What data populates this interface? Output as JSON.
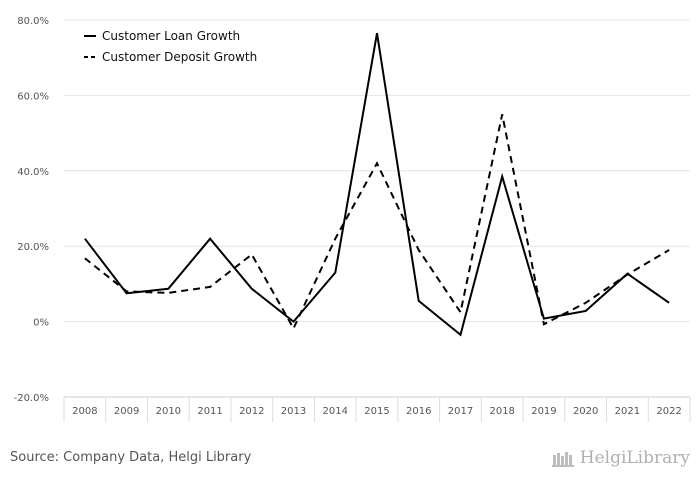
{
  "chart_data": {
    "type": "line",
    "categories": [
      "2008",
      "2009",
      "2010",
      "2011",
      "2012",
      "2013",
      "2014",
      "2015",
      "2016",
      "2017",
      "2018",
      "2019",
      "2020",
      "2021",
      "2022"
    ],
    "series": [
      {
        "name": "Customer Loan Growth",
        "style": "solid",
        "values": [
          22.0,
          7.5,
          8.7,
          22.0,
          8.7,
          0.0,
          13.0,
          76.5,
          5.5,
          -3.5,
          38.5,
          0.8,
          2.8,
          12.7,
          5.0
        ]
      },
      {
        "name": "Customer Deposit Growth",
        "style": "dashed",
        "values": [
          16.8,
          8.0,
          7.6,
          9.2,
          17.8,
          -1.8,
          22.0,
          42.0,
          19.0,
          2.5,
          55.0,
          -0.7,
          5.0,
          12.5,
          19.0
        ]
      }
    ],
    "y_ticks": [
      "80.0%",
      "60.0%",
      "40.0%",
      "20.0%",
      "0%",
      "-20.0%"
    ],
    "y_tick_values": [
      80,
      60,
      40,
      20,
      0,
      -20
    ],
    "ylim": [
      -20,
      80
    ],
    "grid": true,
    "legend_position": "top-left",
    "line_color": "#000000"
  },
  "footer": {
    "source": "Source: Company Data, Helgi Library",
    "brand": "HelgiLibrary"
  }
}
